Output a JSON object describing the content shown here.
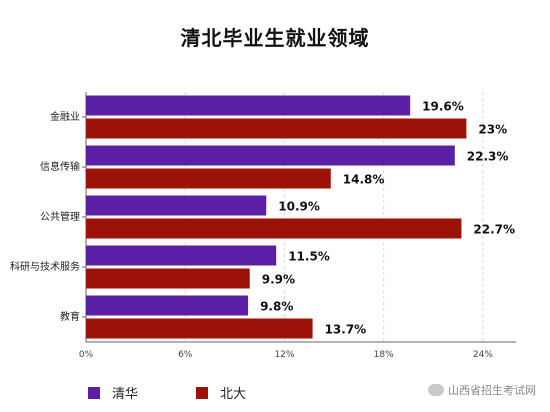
{
  "chart_data": {
    "type": "bar",
    "orientation": "horizontal",
    "title": "清北毕业生就业领域",
    "categories": [
      "金融业",
      "信息传输",
      "公共管理",
      "科研与技术服务",
      "教育"
    ],
    "series": [
      {
        "name": "清华",
        "color": "#5b1fa6",
        "values": [
          19.6,
          22.3,
          10.9,
          11.5,
          9.8
        ],
        "labels": [
          "19.6%",
          "22.3%",
          "10.9%",
          "11.5%",
          "9.8%"
        ]
      },
      {
        "name": "北大",
        "color": "#9c1208",
        "values": [
          23,
          14.8,
          22.7,
          9.9,
          13.7
        ],
        "labels": [
          "23%",
          "14.8%",
          "22.7%",
          "9.9%",
          "13.7%"
        ]
      }
    ],
    "xlim": [
      0,
      26
    ],
    "xticks": [
      0,
      6,
      12,
      18,
      24
    ],
    "xtick_labels": [
      "0%",
      "6%",
      "12%",
      "18%",
      "24%"
    ],
    "grid": "vertical-dashed",
    "legend": "bottom-left"
  },
  "watermark": "山西省招生考试网"
}
